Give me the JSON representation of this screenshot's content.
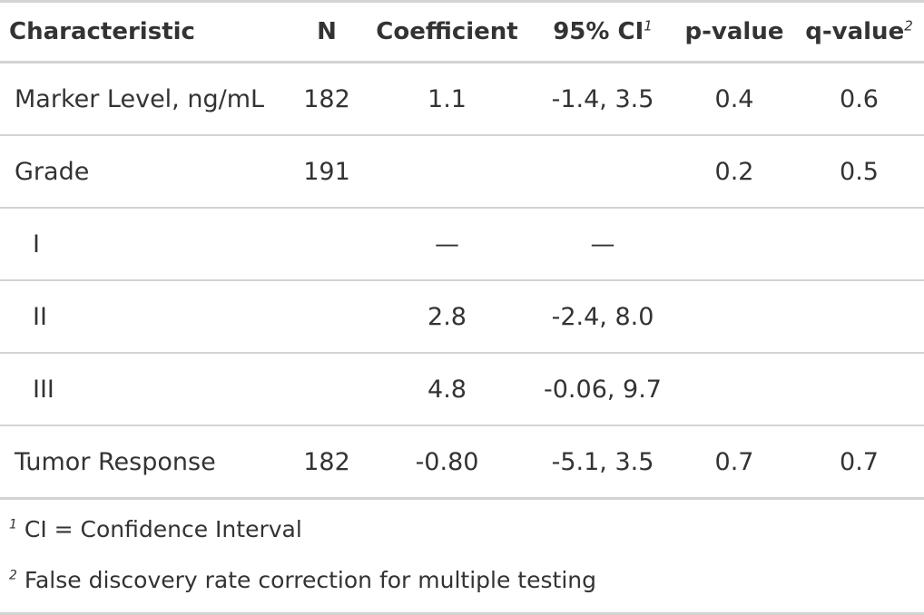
{
  "table": {
    "headers": {
      "characteristic": "Characteristic",
      "n": "N",
      "coefficient": "Coefficient",
      "ci": "95% CI",
      "ci_marker": "1",
      "p_value": "p-value",
      "q_value": "q-value",
      "q_marker": "2"
    },
    "rows": [
      {
        "label": "Marker Level, ng/mL",
        "n": "182",
        "coefficient": "1.1",
        "ci": "-1.4, 3.5",
        "p_value": "0.4",
        "q_value": "0.6"
      },
      {
        "label": "Grade",
        "n": "191",
        "coefficient": "",
        "ci": "",
        "p_value": "0.2",
        "q_value": "0.5"
      },
      {
        "label": "I",
        "n": "",
        "coefficient": "—",
        "ci": "—",
        "p_value": "",
        "q_value": ""
      },
      {
        "label": "II",
        "n": "",
        "coefficient": "2.8",
        "ci": "-2.4, 8.0",
        "p_value": "",
        "q_value": ""
      },
      {
        "label": "III",
        "n": "",
        "coefficient": "4.8",
        "ci": "-0.06, 9.7",
        "p_value": "",
        "q_value": ""
      },
      {
        "label": "Tumor Response",
        "n": "182",
        "coefficient": "-0.80",
        "ci": "-5.1, 3.5",
        "p_value": "0.7",
        "q_value": "0.7"
      }
    ],
    "footnotes": [
      {
        "marker": "1",
        "text": "CI = Confidence Interval"
      },
      {
        "marker": "2",
        "text": "False discovery rate correction for multiple testing"
      }
    ]
  },
  "colors": {
    "text": "#333333",
    "rule": "#d3d3d3",
    "background": "#ffffff"
  }
}
